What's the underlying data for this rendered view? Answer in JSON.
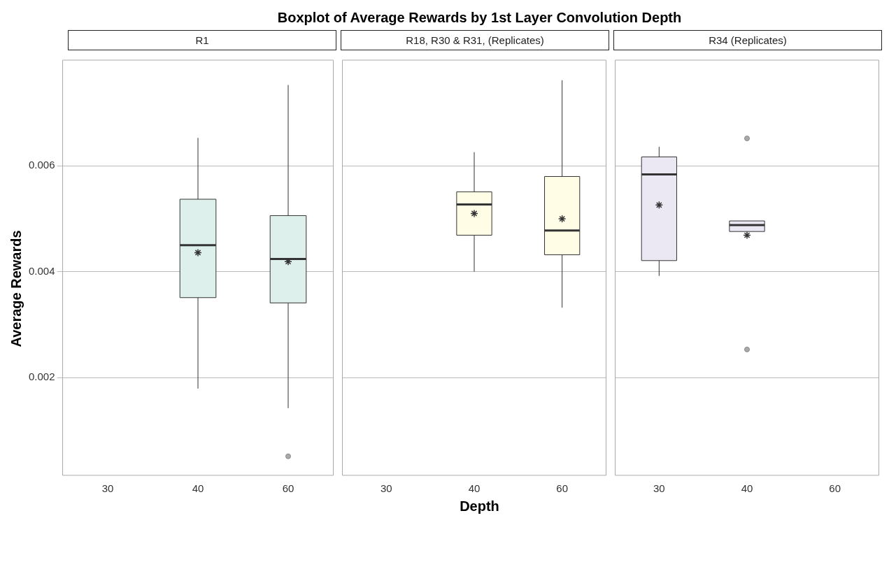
{
  "chart_data": [
    {
      "type": "box",
      "title": "Boxplot of Average Rewards by 1st Layer Convolution Depth",
      "subtitle": "R1",
      "ylabel": "Average Rewards",
      "categories": [
        "30",
        "40",
        "60"
      ],
      "ylim": [
        0.00015,
        0.008
      ],
      "yticks": [
        0.002,
        0.004,
        0.006
      ],
      "grid": "y",
      "series": [
        {
          "color": "#ddf0ec",
          "boxes": [
            null,
            {
              "low": 0.00179,
              "q1": 0.00351,
              "median": 0.0045,
              "q3": 0.00537,
              "high": 0.00653,
              "mean": 0.00436
            },
            {
              "low": 0.00142,
              "q1": 0.00341,
              "median": 0.00424,
              "q3": 0.00506,
              "high": 0.00753,
              "mean": 0.00419,
              "outliers": [
                0.00051
              ]
            }
          ]
        }
      ]
    },
    {
      "type": "box",
      "subtitle": "R18, R30 & R31, (Replicates)",
      "xlabel": "Depth",
      "categories": [
        "30",
        "40",
        "60"
      ],
      "ylim": [
        0.00015,
        0.008
      ],
      "yticks": [
        0.002,
        0.004,
        0.006
      ],
      "grid": "y",
      "tick_labels": "x",
      "series": [
        {
          "color": "#fffde6",
          "boxes": [
            null,
            {
              "low": 0.004,
              "q1": 0.00469,
              "median": 0.00527,
              "q3": 0.00551,
              "high": 0.00626,
              "mean": 0.0051
            },
            {
              "low": 0.00332,
              "q1": 0.00432,
              "median": 0.00478,
              "q3": 0.0058,
              "high": 0.00762,
              "mean": 0.005
            }
          ]
        }
      ]
    },
    {
      "type": "box",
      "subtitle": "R34 (Replicates)",
      "categories": [
        "30",
        "40",
        "60"
      ],
      "ylim": [
        0.00015,
        0.008
      ],
      "yticks": [
        0.002,
        0.004,
        0.006
      ],
      "grid": "y",
      "tick_labels": "x",
      "series": [
        {
          "color": "#ebe8f4",
          "boxes": [
            {
              "low": 0.00392,
              "q1": 0.00421,
              "median": 0.00584,
              "q3": 0.00617,
              "high": 0.00636,
              "mean": 0.00526
            },
            {
              "low": 0.00476,
              "q1": 0.00476,
              "median": 0.00488,
              "q3": 0.00496,
              "high": 0.00496,
              "mean": 0.00469,
              "outliers": [
                0.00652,
                0.00253
              ]
            },
            null
          ]
        }
      ]
    }
  ]
}
